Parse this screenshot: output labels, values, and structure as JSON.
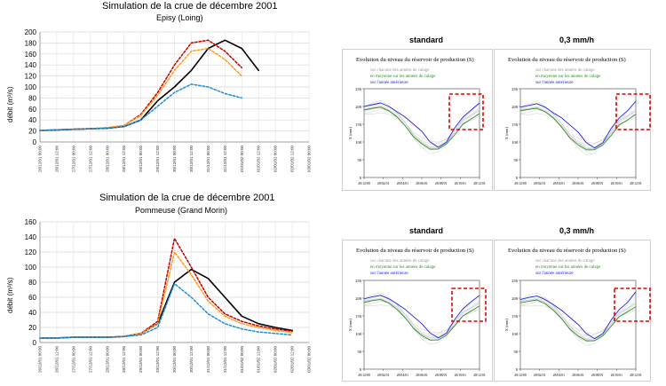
{
  "chart_data": [
    {
      "type": "line",
      "title": "Simulation de la crue de décembre 2001",
      "subtitle": "Episy (Loing)",
      "ylabel": "débit (m³/s)",
      "ylim": [
        0,
        200
      ],
      "yticks": [
        0,
        20,
        40,
        60,
        80,
        100,
        120,
        140,
        160,
        180,
        200
      ],
      "x": [
        "26/12/01 00:00",
        "26/12/01 12:00",
        "27/12/01 00:00",
        "27/12/01 12:00",
        "28/12/01 00:00",
        "28/12/01 12:00",
        "29/12/01 00:00",
        "29/12/01 12:00",
        "30/12/01 00:00",
        "30/12/01 12:00",
        "31/12/01 00:00",
        "31/12/01 12:00",
        "01/01/02 00:00",
        "01/01/02 12:00",
        "02/01/02 00:00",
        "02/01/02 12:00",
        "03/01/02 00:00"
      ],
      "series": [
        {
          "color": "#000000",
          "dash": "solid",
          "values": [
            21,
            22,
            23,
            24,
            25,
            28,
            40,
            75,
            100,
            130,
            170,
            185,
            170,
            130,
            null,
            null,
            null
          ]
        },
        {
          "color": "#c00000",
          "dash": "dotted",
          "values": [
            21,
            22,
            23,
            24,
            26,
            30,
            50,
            90,
            140,
            180,
            185,
            165,
            135,
            null,
            null,
            null,
            null
          ]
        },
        {
          "color": "#ff9a1f",
          "dash": "dotted",
          "values": [
            21,
            22,
            23,
            24,
            26,
            30,
            48,
            85,
            130,
            165,
            170,
            150,
            120,
            null,
            null,
            null,
            null
          ]
        },
        {
          "color": "#1f8fd6",
          "dash": "dotted",
          "values": [
            21,
            22,
            23,
            24,
            25,
            28,
            40,
            65,
            90,
            105,
            100,
            88,
            80,
            null,
            null,
            null,
            null
          ]
        }
      ],
      "grid": true
    },
    {
      "type": "line",
      "title": "Simulation de la crue de décembre 2001",
      "subtitle": "Pommeuse (Grand Morin)",
      "ylabel": "débit (m³/s)",
      "ylim": [
        0,
        160
      ],
      "yticks": [
        0,
        20,
        40,
        60,
        80,
        100,
        120,
        140,
        160
      ],
      "x": [
        "26/12/01 00:00",
        "26/12/01 12:00",
        "27/12/01 00:00",
        "27/12/01 12:00",
        "28/12/01 00:00",
        "28/12/01 12:00",
        "29/12/01 00:00",
        "29/12/01 12:00",
        "30/12/01 00:00",
        "30/12/01 12:00",
        "31/12/01 00:00",
        "31/12/01 12:00",
        "01/01/02 00:00",
        "01/01/02 12:00",
        "02/01/02 00:00",
        "02/01/02 12:00",
        "03/01/02 00:00"
      ],
      "series": [
        {
          "color": "#000000",
          "dash": "solid",
          "values": [
            6,
            6,
            7,
            7,
            7,
            8,
            12,
            25,
            80,
            97,
            85,
            60,
            35,
            25,
            20,
            16,
            null
          ]
        },
        {
          "color": "#c00000",
          "dash": "dotted",
          "values": [
            6,
            6,
            7,
            7,
            7,
            8,
            12,
            28,
            138,
            100,
            60,
            38,
            28,
            22,
            18,
            15,
            null
          ]
        },
        {
          "color": "#ff9a1f",
          "dash": "dotted",
          "values": [
            6,
            6,
            7,
            7,
            7,
            8,
            12,
            25,
            120,
            90,
            55,
            35,
            25,
            20,
            16,
            13,
            null
          ]
        },
        {
          "color": "#1f8fd6",
          "dash": "dotted",
          "values": [
            6,
            6,
            7,
            7,
            7,
            8,
            10,
            20,
            78,
            60,
            38,
            25,
            18,
            14,
            12,
            10,
            null
          ]
        }
      ],
      "grid": true
    },
    {
      "type": "line",
      "heading": "standard",
      "title": "Evolution du niveau du réservoir de production (S)",
      "ylabel": "S [mm]",
      "ylim": [
        0,
        250
      ],
      "yticks": [
        0,
        50,
        100,
        150,
        200,
        250
      ],
      "xticks": [
        "28/12/00",
        "28/02/01",
        "28/04/01",
        "28/06/01",
        "28/08/01",
        "28/10/01",
        "28/12/01"
      ],
      "legend": [
        "sur chacune des années de calage",
        "en moyenne sur les années de calage",
        "sur l'année antérieure"
      ],
      "series": [
        {
          "color": "#bbbbbb",
          "values": [
            190,
            195,
            200,
            190,
            175,
            150,
            120,
            100,
            85,
            85,
            100,
            130,
            160,
            175,
            190
          ]
        },
        {
          "color": "#2e8b2e",
          "values": [
            190,
            195,
            198,
            188,
            170,
            145,
            115,
            95,
            80,
            80,
            95,
            120,
            150,
            165,
            180
          ]
        },
        {
          "color": "#2020e0",
          "values": [
            200,
            205,
            210,
            200,
            185,
            170,
            150,
            130,
            100,
            85,
            100,
            140,
            170,
            190,
            210
          ]
        }
      ]
    },
    {
      "type": "line",
      "heading": "0,3 mm/h",
      "title": "Evolution du niveau du réservoir de production (S)",
      "ylabel": "S [mm]",
      "ylim": [
        0,
        250
      ],
      "yticks": [
        0,
        50,
        100,
        150,
        200,
        250
      ],
      "xticks": [
        "28/12/00",
        "28/02/01",
        "28/04/01",
        "28/06/01",
        "28/08/01",
        "28/10/01",
        "28/12/01"
      ],
      "legend": [
        "sur chacune des années de calage",
        "en moyenne sur les années de calage",
        "sur l'année antérieure"
      ],
      "series": [
        {
          "color": "#bbbbbb",
          "values": [
            190,
            193,
            198,
            188,
            172,
            148,
            118,
            98,
            82,
            82,
            98,
            128,
            158,
            172,
            188
          ]
        },
        {
          "color": "#2e8b2e",
          "values": [
            188,
            192,
            195,
            185,
            168,
            142,
            112,
            92,
            78,
            78,
            92,
            118,
            148,
            162,
            178
          ]
        },
        {
          "color": "#2020e0",
          "values": [
            198,
            203,
            208,
            198,
            182,
            168,
            148,
            128,
            98,
            83,
            98,
            138,
            168,
            188,
            215
          ]
        }
      ]
    },
    {
      "type": "line",
      "heading": "standard",
      "title": "Evolution du niveau du réservoir de production (S)",
      "ylabel": "S [mm]",
      "ylim": [
        0,
        250
      ],
      "yticks": [
        0,
        50,
        100,
        150,
        200,
        250
      ],
      "xticks": [
        "28/12/00",
        "28/02/01",
        "28/04/01",
        "28/06/01",
        "28/08/01",
        "28/10/01",
        "28/12/01"
      ],
      "legend": [
        "sur chacune des années de calage",
        "en moyenne sur les années de calage",
        "sur l'année antérieure"
      ],
      "series": [
        {
          "color": "#bbbbbb",
          "values": [
            190,
            195,
            198,
            190,
            175,
            150,
            122,
            100,
            88,
            88,
            102,
            130,
            158,
            172,
            188
          ]
        },
        {
          "color": "#2e8b2e",
          "values": [
            188,
            193,
            196,
            186,
            168,
            144,
            115,
            95,
            82,
            82,
            96,
            122,
            150,
            164,
            178
          ]
        },
        {
          "color": "#2020e0",
          "values": [
            198,
            204,
            208,
            198,
            184,
            168,
            148,
            128,
            102,
            88,
            102,
            140,
            170,
            190,
            208
          ]
        }
      ]
    },
    {
      "type": "line",
      "heading": "0,3 mm/h",
      "title": "Evolution du niveau du réservoir de production (S)",
      "ylabel": "S [mm]",
      "ylim": [
        0,
        250
      ],
      "yticks": [
        0,
        50,
        100,
        150,
        200,
        250
      ],
      "xticks": [
        "28/12/00",
        "28/02/01",
        "28/04/01",
        "28/06/01",
        "28/08/01",
        "28/10/01",
        "28/12/01"
      ],
      "legend": [
        "sur chacune des années de calage",
        "en moyenne sur les années de calage",
        "sur l'année antérieure"
      ],
      "series": [
        {
          "color": "#bbbbbb",
          "values": [
            190,
            194,
            197,
            189,
            173,
            148,
            120,
            98,
            85,
            85,
            100,
            128,
            156,
            170,
            186
          ]
        },
        {
          "color": "#2e8b2e",
          "values": [
            187,
            191,
            195,
            184,
            166,
            142,
            113,
            93,
            80,
            80,
            94,
            120,
            148,
            162,
            176
          ]
        },
        {
          "color": "#2020e0",
          "values": [
            196,
            202,
            206,
            196,
            182,
            166,
            146,
            126,
            100,
            86,
            100,
            138,
            168,
            188,
            218
          ]
        }
      ]
    }
  ]
}
